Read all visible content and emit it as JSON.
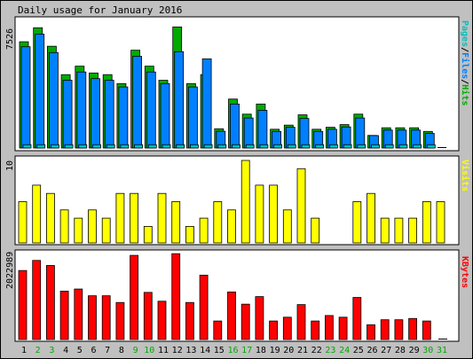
{
  "title": "Daily usage for January 2016",
  "colors": {
    "frame_bg": "#c0c0c0",
    "plot_bg": "#ffffff",
    "hits": "#00aa00",
    "files": "#0080ff",
    "pages": "#00c0c0",
    "visits": "#ffff00",
    "kbytes": "#ff0000",
    "weekend_label": "#00aa00",
    "weekday_label": "#000000"
  },
  "chart_data": [
    {
      "type": "bar",
      "name": "pages-files-hits",
      "right_label_parts": [
        {
          "text": "Pages",
          "color": "#00c0c0"
        },
        {
          "text": "/",
          "color": "#000000"
        },
        {
          "text": "Files",
          "color": "#0080ff"
        },
        {
          "text": "/",
          "color": "#000000"
        },
        {
          "text": "Hits",
          "color": "#00aa00"
        }
      ],
      "ymax_label": "7526",
      "ylim": [
        0,
        7526
      ],
      "categories": [
        "1",
        "2",
        "3",
        "4",
        "5",
        "6",
        "7",
        "8",
        "9",
        "10",
        "11",
        "12",
        "13",
        "14",
        "15",
        "16",
        "17",
        "18",
        "19",
        "20",
        "21",
        "22",
        "23",
        "24",
        "25",
        "26",
        "27",
        "28",
        "29",
        "30",
        "31"
      ],
      "series": [
        {
          "name": "Hits",
          "values": [
            6400,
            7240,
            6130,
            4420,
            4930,
            4520,
            4420,
            3880,
            5890,
            4930,
            4080,
            7290,
            3880,
            4420,
            1160,
            2950,
            2040,
            2650,
            1130,
            1380,
            2000,
            1130,
            1250,
            1410,
            2040,
            760,
            1220,
            1220,
            1220,
            1000,
            0
          ]
        },
        {
          "name": "Files",
          "values": [
            6100,
            6860,
            5750,
            4080,
            4580,
            4180,
            4080,
            3680,
            5520,
            4580,
            3880,
            5800,
            3680,
            5370,
            1010,
            2650,
            1810,
            2270,
            1000,
            1250,
            1780,
            1000,
            1130,
            1270,
            1810,
            750,
            1080,
            1080,
            1080,
            880,
            0
          ]
        },
        {
          "name": "Pages",
          "values": [
            200,
            200,
            200,
            200,
            200,
            200,
            200,
            200,
            200,
            200,
            200,
            200,
            200,
            200,
            200,
            200,
            200,
            200,
            200,
            200,
            200,
            200,
            200,
            200,
            200,
            200,
            200,
            200,
            200,
            200,
            0
          ]
        }
      ]
    },
    {
      "type": "bar",
      "name": "visits",
      "right_label_parts": [
        {
          "text": "Visits",
          "color": "#ffff00"
        }
      ],
      "ymax_label": "10",
      "ylim": [
        0,
        10
      ],
      "series": [
        {
          "name": "Visits",
          "values": [
            5,
            7,
            6,
            4,
            3,
            4,
            3,
            6,
            6,
            2,
            6,
            5,
            2,
            3,
            5,
            4,
            10,
            7,
            7,
            4,
            9,
            3,
            0,
            0,
            5,
            6,
            3,
            3,
            3,
            5,
            5
          ]
        }
      ]
    },
    {
      "type": "bar",
      "name": "kbytes",
      "right_label_parts": [
        {
          "text": "KBytes",
          "color": "#ff0000"
        }
      ],
      "ymax_label": "2022989",
      "ylim": [
        0,
        2022989
      ],
      "series": [
        {
          "name": "KBytes",
          "values": [
            1640000,
            1880000,
            1760000,
            1150000,
            1200000,
            1040000,
            1040000,
            880000,
            2000000,
            1120000,
            910000,
            2040000,
            880000,
            1530000,
            440000,
            1130000,
            840000,
            1020000,
            440000,
            530000,
            830000,
            440000,
            570000,
            530000,
            1000000,
            350000,
            470000,
            470000,
            500000,
            440000,
            0
          ]
        }
      ]
    }
  ],
  "weekend_days": [
    "2",
    "3",
    "9",
    "10",
    "16",
    "17",
    "23",
    "24",
    "30",
    "31"
  ]
}
